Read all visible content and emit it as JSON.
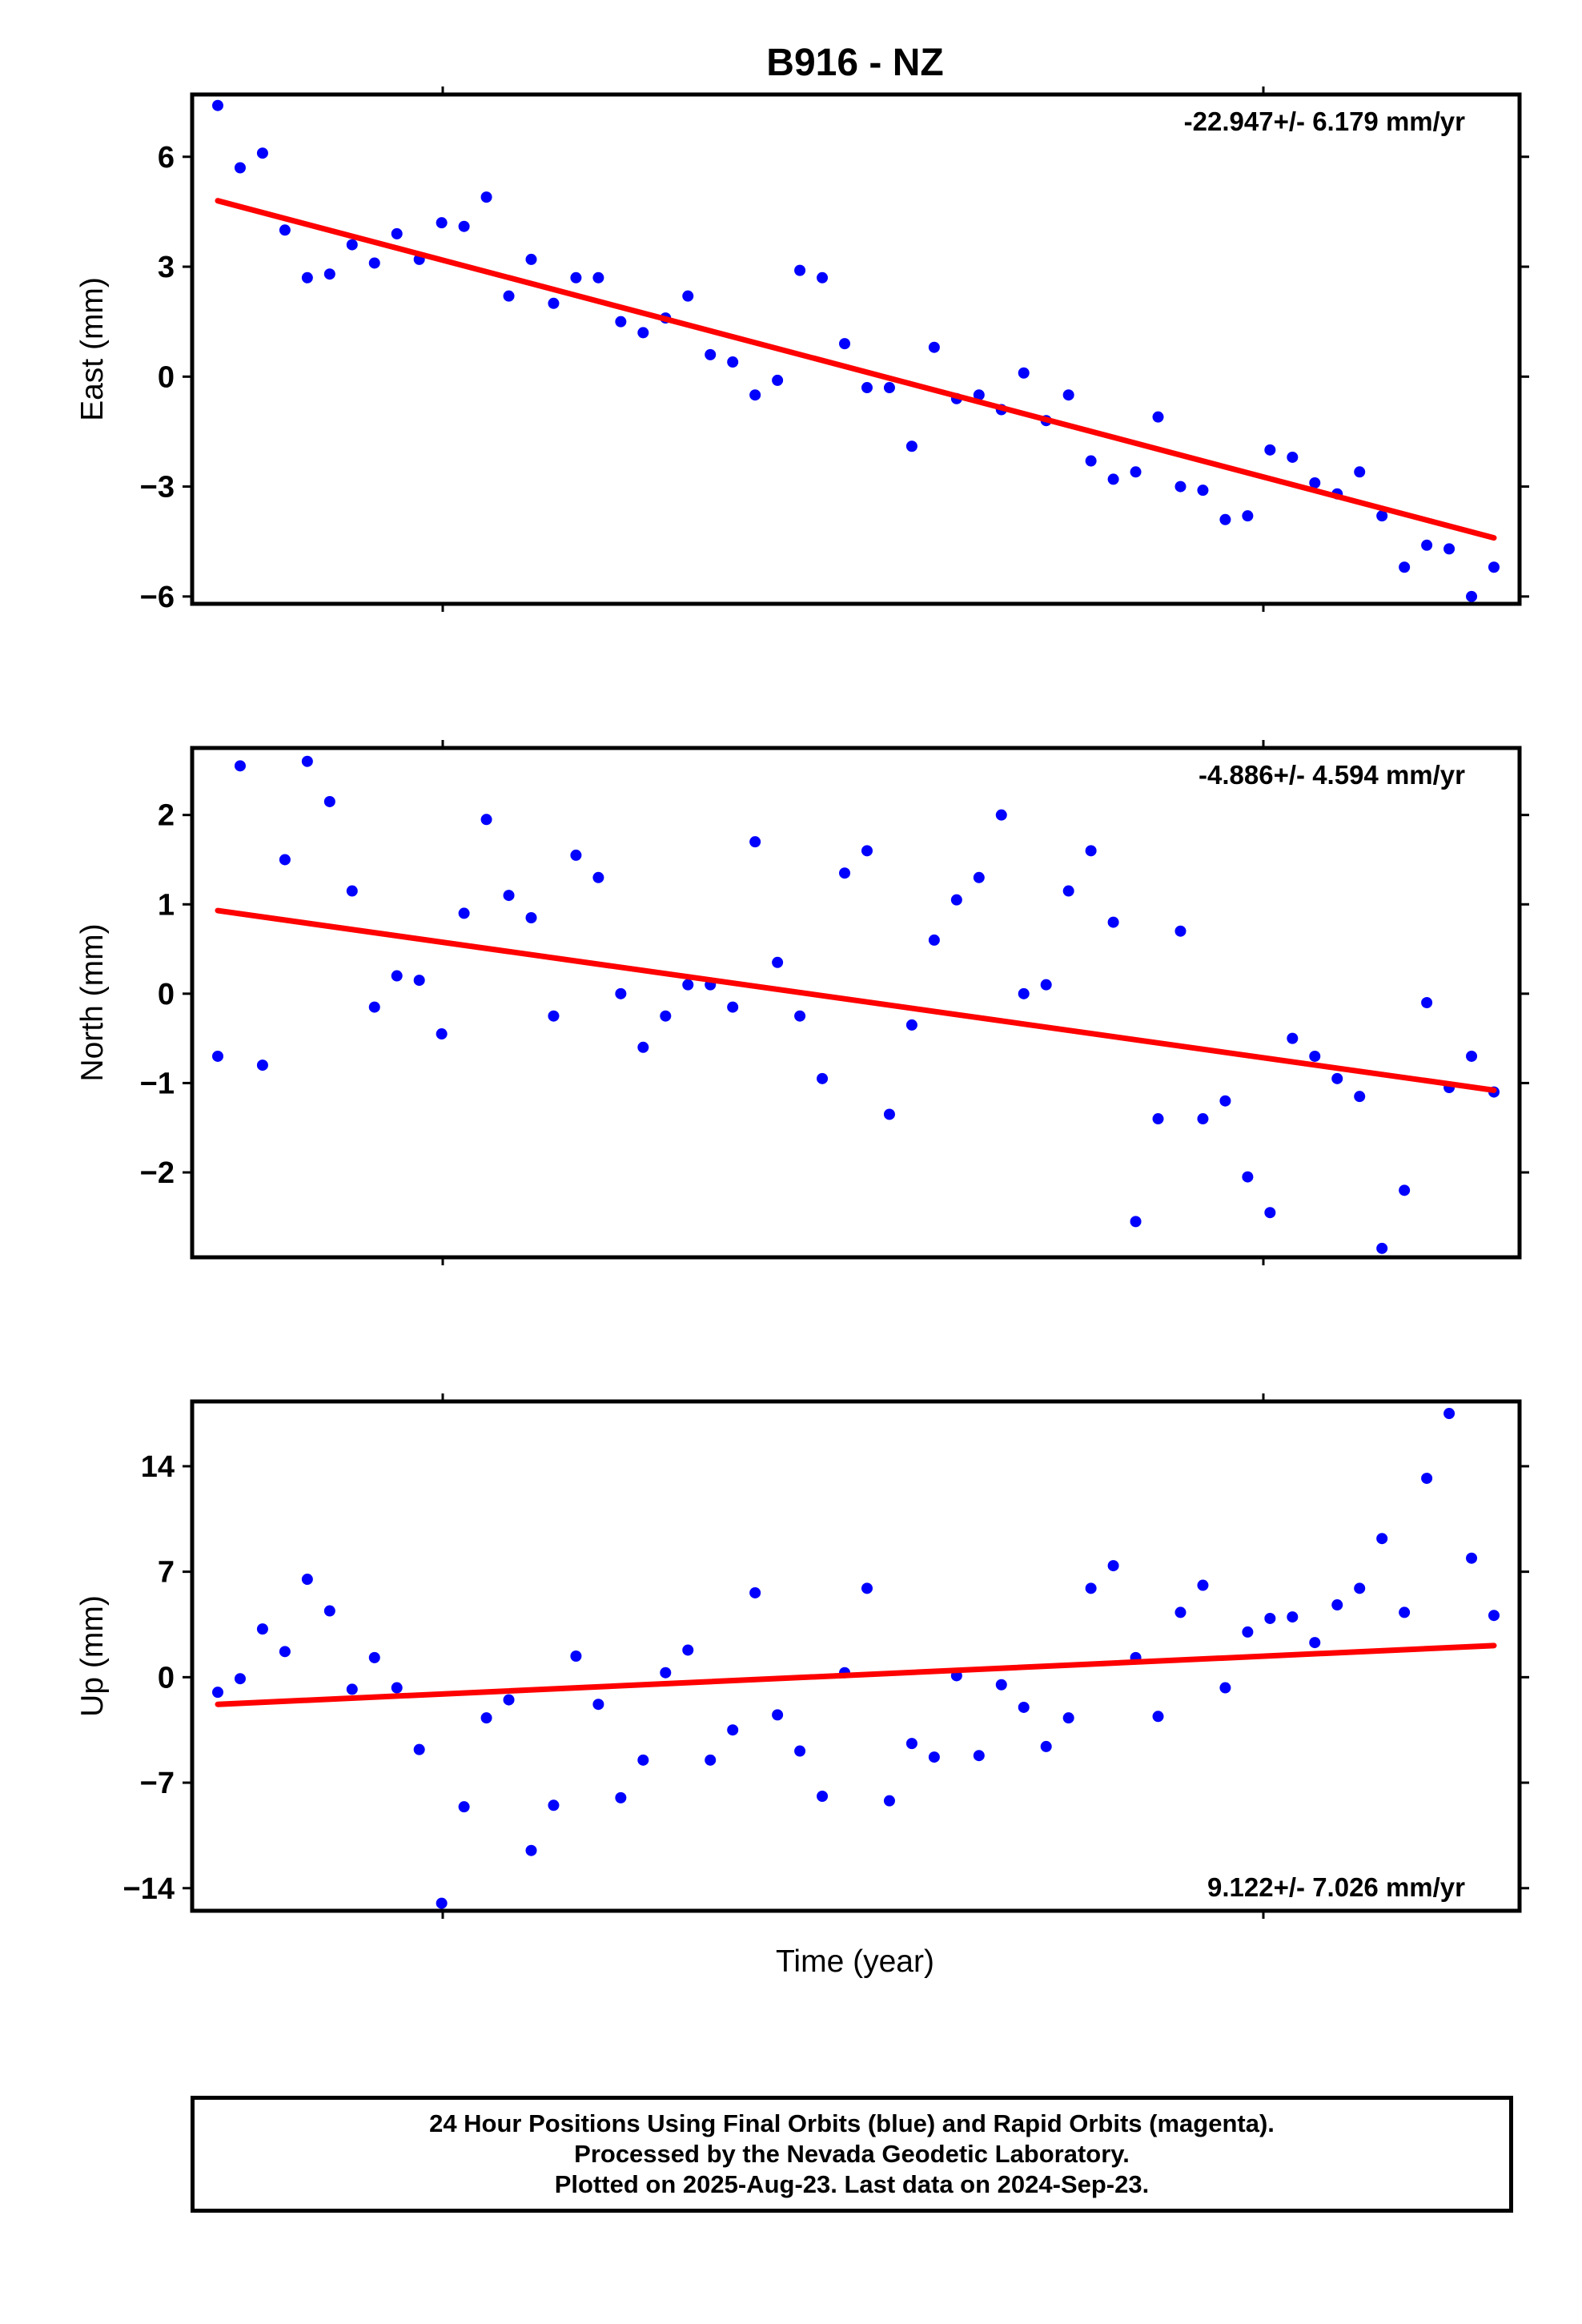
{
  "title": "B916 - NZ",
  "xlabel": "Time (year)",
  "colors": {
    "points": "#0000ff",
    "trend": "#ff0000",
    "frame": "#000000"
  },
  "footer": {
    "line1": "24 Hour Positions Using Final Orbits (blue) and Rapid Orbits (magenta).",
    "line2": "Processed by the Nevada Geodetic Laboratory.",
    "line3": "Plotted on 2025-Aug-23. Last data on 2024-Sep-23."
  },
  "chart_data": [
    {
      "type": "scatter",
      "ylabel": "East (mm)",
      "rate_label": "-22.947+/- 6.179 mm/yr",
      "yticks": [
        6,
        3,
        0,
        -3,
        -6
      ],
      "ytick_labels": [
        "6",
        "3",
        "0",
        "−3",
        "−6"
      ],
      "ylim": [
        -6.2,
        7.7
      ],
      "y": [
        7.4,
        5.7,
        6.1,
        4.0,
        2.7,
        2.8,
        3.6,
        3.1,
        3.9,
        3.2,
        4.2,
        4.1,
        4.9,
        2.2,
        3.2,
        2.0,
        2.7,
        2.7,
        1.5,
        1.2,
        1.6,
        2.2,
        0.6,
        0.4,
        -0.5,
        -0.1,
        2.9,
        2.7,
        0.9,
        -0.3,
        -0.3,
        -1.9,
        0.8,
        -0.6,
        -0.5,
        -0.9,
        0.1,
        -1.2,
        -0.5,
        -2.3,
        -2.8,
        -2.6,
        -1.1,
        -3.0,
        -3.1,
        -3.9,
        -3.8,
        -2.0,
        -2.2,
        -2.9,
        -3.2,
        -2.6,
        -3.8,
        -5.2,
        -4.6,
        -4.7,
        -6.0,
        -5.2
      ],
      "trend": [
        4.8,
        -4.4
      ]
    },
    {
      "type": "scatter",
      "ylabel": "North (mm)",
      "rate_label": "-4.886+/- 4.594 mm/yr",
      "yticks": [
        2,
        1,
        0,
        -1,
        -2
      ],
      "ytick_labels": [
        "2",
        "1",
        "0",
        "−1",
        "−2"
      ],
      "ylim": [
        -2.95,
        2.75
      ],
      "y": [
        -0.7,
        2.55,
        -0.8,
        1.5,
        2.6,
        2.15,
        1.15,
        -0.15,
        0.2,
        0.15,
        -0.45,
        0.9,
        1.95,
        1.1,
        0.85,
        -0.25,
        1.55,
        1.3,
        0.0,
        -0.6,
        -0.25,
        0.1,
        0.1,
        -0.15,
        1.7,
        0.35,
        -0.25,
        -0.95,
        1.35,
        1.6,
        -1.35,
        -0.35,
        0.6,
        1.05,
        1.3,
        2.0,
        0.0,
        0.1,
        1.15,
        1.6,
        0.8,
        -2.55,
        -1.4,
        0.7,
        -1.4,
        -1.2,
        -2.05,
        -2.45,
        -0.5,
        -0.7,
        -0.95,
        -1.15,
        -2.85,
        -2.2,
        -0.1,
        -1.05,
        -0.7,
        -1.1
      ],
      "trend": [
        0.93,
        -1.08
      ]
    },
    {
      "type": "scatter",
      "ylabel": "Up (mm)",
      "rate_label": "9.122+/- 7.026 mm/yr",
      "yticks": [
        14,
        7,
        0,
        -7,
        -14
      ],
      "ytick_labels": [
        "14",
        "7",
        "0",
        "−7",
        "−14"
      ],
      "ylim": [
        -15.5,
        18.3
      ],
      "y": [
        -1.0,
        -0.1,
        3.2,
        1.7,
        6.5,
        4.4,
        -0.8,
        1.3,
        -0.7,
        -4.8,
        -15.0,
        -8.6,
        -2.7,
        -1.5,
        -11.5,
        -8.5,
        1.4,
        -1.8,
        -8.0,
        -5.5,
        0.3,
        1.8,
        -5.5,
        -3.5,
        5.6,
        -2.5,
        -4.9,
        -7.9,
        0.3,
        5.9,
        -8.2,
        -4.4,
        -5.3,
        0.1,
        -5.2,
        -0.5,
        -2.0,
        -4.6,
        -2.7,
        5.9,
        7.4,
        1.3,
        -2.6,
        4.3,
        6.1,
        -0.7,
        3.0,
        3.9,
        4.0,
        2.3,
        4.8,
        5.9,
        9.2,
        4.3,
        13.2,
        17.5,
        7.9,
        4.1
      ],
      "trend": [
        -1.8,
        2.1
      ]
    }
  ]
}
